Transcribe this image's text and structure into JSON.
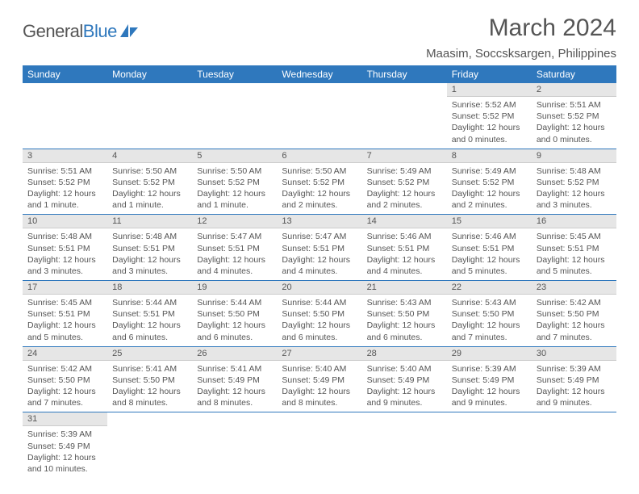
{
  "brand": {
    "part1": "General",
    "part2": "Blue"
  },
  "title": "March 2024",
  "location": "Maasim, Soccsksargen, Philippines",
  "colors": {
    "header_bg": "#2f78bd",
    "header_text": "#ffffff",
    "daynum_bg": "#e6e6e6",
    "rule": "#2f78bd",
    "text": "#555555",
    "page_bg": "#ffffff"
  },
  "weekdays": [
    "Sunday",
    "Monday",
    "Tuesday",
    "Wednesday",
    "Thursday",
    "Friday",
    "Saturday"
  ],
  "grid": [
    [
      null,
      null,
      null,
      null,
      null,
      {
        "n": "1",
        "sr": "5:52 AM",
        "ss": "5:52 PM",
        "dl": "12 hours and 0 minutes."
      },
      {
        "n": "2",
        "sr": "5:51 AM",
        "ss": "5:52 PM",
        "dl": "12 hours and 0 minutes."
      }
    ],
    [
      {
        "n": "3",
        "sr": "5:51 AM",
        "ss": "5:52 PM",
        "dl": "12 hours and 1 minute."
      },
      {
        "n": "4",
        "sr": "5:50 AM",
        "ss": "5:52 PM",
        "dl": "12 hours and 1 minute."
      },
      {
        "n": "5",
        "sr": "5:50 AM",
        "ss": "5:52 PM",
        "dl": "12 hours and 1 minute."
      },
      {
        "n": "6",
        "sr": "5:50 AM",
        "ss": "5:52 PM",
        "dl": "12 hours and 2 minutes."
      },
      {
        "n": "7",
        "sr": "5:49 AM",
        "ss": "5:52 PM",
        "dl": "12 hours and 2 minutes."
      },
      {
        "n": "8",
        "sr": "5:49 AM",
        "ss": "5:52 PM",
        "dl": "12 hours and 2 minutes."
      },
      {
        "n": "9",
        "sr": "5:48 AM",
        "ss": "5:52 PM",
        "dl": "12 hours and 3 minutes."
      }
    ],
    [
      {
        "n": "10",
        "sr": "5:48 AM",
        "ss": "5:51 PM",
        "dl": "12 hours and 3 minutes."
      },
      {
        "n": "11",
        "sr": "5:48 AM",
        "ss": "5:51 PM",
        "dl": "12 hours and 3 minutes."
      },
      {
        "n": "12",
        "sr": "5:47 AM",
        "ss": "5:51 PM",
        "dl": "12 hours and 4 minutes."
      },
      {
        "n": "13",
        "sr": "5:47 AM",
        "ss": "5:51 PM",
        "dl": "12 hours and 4 minutes."
      },
      {
        "n": "14",
        "sr": "5:46 AM",
        "ss": "5:51 PM",
        "dl": "12 hours and 4 minutes."
      },
      {
        "n": "15",
        "sr": "5:46 AM",
        "ss": "5:51 PM",
        "dl": "12 hours and 5 minutes."
      },
      {
        "n": "16",
        "sr": "5:45 AM",
        "ss": "5:51 PM",
        "dl": "12 hours and 5 minutes."
      }
    ],
    [
      {
        "n": "17",
        "sr": "5:45 AM",
        "ss": "5:51 PM",
        "dl": "12 hours and 5 minutes."
      },
      {
        "n": "18",
        "sr": "5:44 AM",
        "ss": "5:51 PM",
        "dl": "12 hours and 6 minutes."
      },
      {
        "n": "19",
        "sr": "5:44 AM",
        "ss": "5:50 PM",
        "dl": "12 hours and 6 minutes."
      },
      {
        "n": "20",
        "sr": "5:44 AM",
        "ss": "5:50 PM",
        "dl": "12 hours and 6 minutes."
      },
      {
        "n": "21",
        "sr": "5:43 AM",
        "ss": "5:50 PM",
        "dl": "12 hours and 6 minutes."
      },
      {
        "n": "22",
        "sr": "5:43 AM",
        "ss": "5:50 PM",
        "dl": "12 hours and 7 minutes."
      },
      {
        "n": "23",
        "sr": "5:42 AM",
        "ss": "5:50 PM",
        "dl": "12 hours and 7 minutes."
      }
    ],
    [
      {
        "n": "24",
        "sr": "5:42 AM",
        "ss": "5:50 PM",
        "dl": "12 hours and 7 minutes."
      },
      {
        "n": "25",
        "sr": "5:41 AM",
        "ss": "5:50 PM",
        "dl": "12 hours and 8 minutes."
      },
      {
        "n": "26",
        "sr": "5:41 AM",
        "ss": "5:49 PM",
        "dl": "12 hours and 8 minutes."
      },
      {
        "n": "27",
        "sr": "5:40 AM",
        "ss": "5:49 PM",
        "dl": "12 hours and 8 minutes."
      },
      {
        "n": "28",
        "sr": "5:40 AM",
        "ss": "5:49 PM",
        "dl": "12 hours and 9 minutes."
      },
      {
        "n": "29",
        "sr": "5:39 AM",
        "ss": "5:49 PM",
        "dl": "12 hours and 9 minutes."
      },
      {
        "n": "30",
        "sr": "5:39 AM",
        "ss": "5:49 PM",
        "dl": "12 hours and 9 minutes."
      }
    ],
    [
      {
        "n": "31",
        "sr": "5:39 AM",
        "ss": "5:49 PM",
        "dl": "12 hours and 10 minutes."
      },
      null,
      null,
      null,
      null,
      null,
      null
    ]
  ],
  "labels": {
    "sunrise": "Sunrise: ",
    "sunset": "Sunset: ",
    "daylight": "Daylight: "
  }
}
